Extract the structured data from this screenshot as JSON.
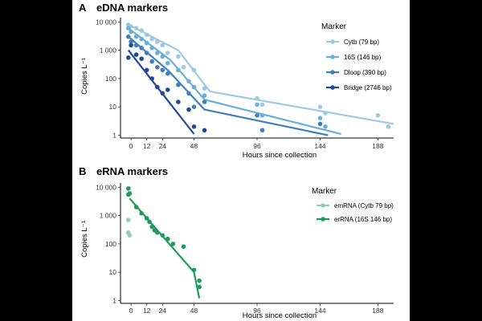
{
  "chart_data": [
    {
      "panel": "A",
      "type": "scatter",
      "title": "eDNA markers",
      "xlabel": "Hours since collection",
      "ylabel": "Copies L⁻¹",
      "xticks": [
        0,
        12,
        24,
        48,
        96,
        144,
        188
      ],
      "yticks": [
        {
          "value": 1,
          "label": "1"
        },
        {
          "value": 10,
          "label": "10"
        },
        {
          "value": 100,
          "label": "100"
        },
        {
          "value": 1000,
          "label": "1 000"
        },
        {
          "value": 10000,
          "label": "10 000"
        }
      ],
      "xlim": [
        -8,
        200
      ],
      "ylim_log10": [
        -0.1,
        4.15
      ],
      "legend_title": "Marker",
      "series": [
        {
          "name": "Cytb (79 bp)",
          "color": "#9ecae1",
          "points": [
            [
              -2,
              8000
            ],
            [
              0,
              7000
            ],
            [
              4,
              6000
            ],
            [
              8,
              5000
            ],
            [
              12,
              3500
            ],
            [
              16,
              2500
            ],
            [
              20,
              2000
            ],
            [
              24,
              1500
            ],
            [
              28,
              800
            ],
            [
              36,
              600
            ],
            [
              40,
              250
            ],
            [
              48,
              200
            ],
            [
              56,
              45
            ],
            [
              96,
              20
            ],
            [
              100,
              12
            ],
            [
              144,
              10
            ],
            [
              148,
              6
            ],
            [
              188,
              5
            ],
            [
              196,
              2
            ]
          ],
          "fit": [
            [
              -2,
              8000
            ],
            [
              36,
              1000
            ],
            [
              60,
              35
            ],
            [
              200,
              2.5
            ]
          ]
        },
        {
          "name": "16S (146 bp)",
          "color": "#6baed6",
          "points": [
            [
              -2,
              6000
            ],
            [
              0,
              4500
            ],
            [
              4,
              3000
            ],
            [
              8,
              2500
            ],
            [
              12,
              1800
            ],
            [
              16,
              1200
            ],
            [
              20,
              800
            ],
            [
              24,
              600
            ],
            [
              28,
              350
            ],
            [
              36,
              200
            ],
            [
              44,
              80
            ],
            [
              48,
              50
            ],
            [
              56,
              25
            ],
            [
              96,
              12
            ],
            [
              100,
              5
            ],
            [
              144,
              4
            ],
            [
              148,
              2
            ]
          ],
          "fit": [
            [
              -2,
              6000
            ],
            [
              30,
              450
            ],
            [
              56,
              18
            ],
            [
              160,
              1.1
            ]
          ]
        },
        {
          "name": "Dloop (390 bp)",
          "color": "#3f7fc0",
          "points": [
            [
              -2,
              3000
            ],
            [
              0,
              2000
            ],
            [
              4,
              1500
            ],
            [
              8,
              1200
            ],
            [
              12,
              800
            ],
            [
              16,
              400
            ],
            [
              20,
              250
            ],
            [
              24,
              200
            ],
            [
              28,
              150
            ],
            [
              36,
              60
            ],
            [
              44,
              30
            ],
            [
              48,
              10
            ],
            [
              56,
              15
            ],
            [
              96,
              5
            ],
            [
              100,
              1.5
            ],
            [
              144,
              2.5
            ]
          ],
          "fit": [
            [
              -2,
              3000
            ],
            [
              28,
              200
            ],
            [
              56,
              8
            ],
            [
              150,
              1.0
            ]
          ]
        },
        {
          "name": "Bridge (2746 bp)",
          "color": "#1e4a96",
          "points": [
            [
              -2,
              550
            ],
            [
              0,
              1500
            ],
            [
              4,
              700
            ],
            [
              8,
              500
            ],
            [
              12,
              200
            ],
            [
              16,
              100
            ],
            [
              20,
              50
            ],
            [
              24,
              30
            ],
            [
              28,
              40
            ],
            [
              36,
              15
            ],
            [
              44,
              8
            ],
            [
              48,
              2
            ],
            [
              56,
              1.5
            ]
          ],
          "fit": [
            [
              -2,
              1000
            ],
            [
              48,
              1.1
            ]
          ]
        }
      ]
    },
    {
      "panel": "B",
      "type": "scatter",
      "title": "eRNA markers",
      "xlabel": "Hours since collection",
      "ylabel": "Copies L⁻¹",
      "xticks": [
        0,
        12,
        24,
        48,
        96,
        144,
        188
      ],
      "yticks": [
        {
          "value": 1,
          "label": "1"
        },
        {
          "value": 10,
          "label": "10"
        },
        {
          "value": 100,
          "label": "100"
        },
        {
          "value": 1000,
          "label": "1 000"
        },
        {
          "value": 10000,
          "label": "10 000"
        }
      ],
      "xlim": [
        -8,
        200
      ],
      "ylim_log10": [
        -0.1,
        4.15
      ],
      "legend_title": "Marker",
      "series": [
        {
          "name": "emRNA (Cytb 79 bp)",
          "color": "#8fd0b4",
          "points": [
            [
              -2,
              700
            ],
            [
              -2,
              250
            ],
            [
              -1,
              200
            ]
          ]
        },
        {
          "name": "erRNA (16S 146 bp)",
          "color": "#1f9a5a",
          "points": [
            [
              -2,
              9000
            ],
            [
              -1,
              6000
            ],
            [
              -2,
              5500
            ],
            [
              4,
              2000
            ],
            [
              8,
              1200
            ],
            [
              12,
              800
            ],
            [
              14,
              600
            ],
            [
              16,
              400
            ],
            [
              18,
              300
            ],
            [
              20,
              250
            ],
            [
              24,
              200
            ],
            [
              28,
              150
            ],
            [
              32,
              100
            ],
            [
              40,
              80
            ],
            [
              48,
              12
            ],
            [
              52,
              5
            ],
            [
              52,
              3
            ]
          ],
          "fit": [
            [
              -1,
              4000
            ],
            [
              48,
              10
            ],
            [
              52,
              1.2
            ]
          ]
        }
      ]
    }
  ]
}
